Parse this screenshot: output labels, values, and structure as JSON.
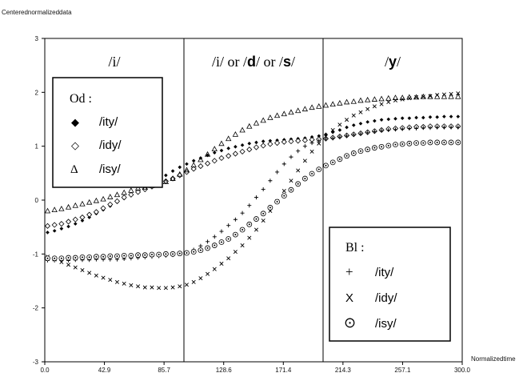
{
  "chart_data": {
    "type": "scatter",
    "ylabel": "Centerednormalizeddata",
    "xlabel": "Normalizedtime",
    "xlim": [
      0,
      300
    ],
    "ylim": [
      -3,
      3
    ],
    "xticks": [
      "0.0",
      "42.9",
      "85.7",
      "128.6",
      "171.4",
      "214.3",
      "257.1",
      "300.0"
    ],
    "yticks": [
      "-3",
      "-2",
      "-1",
      "0",
      "1",
      "2",
      "3"
    ],
    "region_dividers": [
      100,
      200
    ],
    "regions": [
      {
        "label_parts": [
          "/",
          "i",
          "/"
        ],
        "bold": [
          false,
          false,
          false
        ]
      },
      {
        "label_parts": [
          "/",
          "i",
          "/ or /",
          "d",
          "/ or /",
          "s",
          "/"
        ],
        "bold": [
          false,
          false,
          false,
          true,
          false,
          true,
          false
        ]
      },
      {
        "label_parts": [
          "/",
          "y",
          "/"
        ],
        "bold": [
          false,
          true,
          false
        ]
      }
    ],
    "x": [
      2,
      7,
      12,
      17,
      22,
      27,
      32,
      37,
      42,
      47,
      52,
      57,
      62,
      67,
      72,
      77,
      82,
      87,
      92,
      97,
      102,
      107,
      112,
      117,
      122,
      127,
      132,
      137,
      142,
      147,
      152,
      157,
      162,
      167,
      172,
      177,
      182,
      187,
      192,
      197,
      202,
      207,
      212,
      217,
      222,
      227,
      232,
      237,
      242,
      247,
      252,
      257,
      262,
      267,
      272,
      277,
      282,
      287,
      292,
      297
    ],
    "series": [
      {
        "name": "Od /ity/",
        "group": "Od",
        "symbol": "diamond-filled",
        "values": [
          -0.6,
          -0.57,
          -0.53,
          -0.49,
          -0.44,
          -0.38,
          -0.32,
          -0.25,
          -0.18,
          -0.11,
          -0.04,
          0.03,
          0.09,
          0.15,
          0.22,
          0.3,
          0.38,
          0.46,
          0.54,
          0.61,
          0.67,
          0.73,
          0.78,
          0.83,
          0.88,
          0.92,
          0.96,
          0.99,
          1.02,
          1.05,
          1.07,
          1.09,
          1.1,
          1.11,
          1.12,
          1.13,
          1.14,
          1.15,
          1.17,
          1.19,
          1.22,
          1.26,
          1.3,
          1.35,
          1.39,
          1.42,
          1.45,
          1.47,
          1.49,
          1.5,
          1.51,
          1.52,
          1.52,
          1.53,
          1.53,
          1.54,
          1.54,
          1.55,
          1.55,
          1.55
        ]
      },
      {
        "name": "Od /idy/",
        "group": "Od",
        "symbol": "diamond-open",
        "values": [
          -0.48,
          -0.46,
          -0.44,
          -0.4,
          -0.36,
          -0.32,
          -0.27,
          -0.22,
          -0.15,
          -0.08,
          -0.02,
          0.05,
          0.1,
          0.15,
          0.2,
          0.25,
          0.3,
          0.35,
          0.4,
          0.46,
          0.52,
          0.58,
          0.63,
          0.68,
          0.73,
          0.78,
          0.82,
          0.86,
          0.9,
          0.94,
          0.98,
          1.01,
          1.04,
          1.06,
          1.08,
          1.09,
          1.1,
          1.11,
          1.12,
          1.13,
          1.14,
          1.16,
          1.18,
          1.2,
          1.22,
          1.24,
          1.26,
          1.28,
          1.3,
          1.32,
          1.33,
          1.34,
          1.35,
          1.36,
          1.36,
          1.37,
          1.37,
          1.37,
          1.37,
          1.37
        ]
      },
      {
        "name": "Od /isy/",
        "group": "Od",
        "symbol": "triangle-open",
        "values": [
          -0.2,
          -0.18,
          -0.16,
          -0.13,
          -0.1,
          -0.07,
          -0.04,
          -0.01,
          0.02,
          0.06,
          0.1,
          0.14,
          0.18,
          0.22,
          0.24,
          0.27,
          0.3,
          0.34,
          0.4,
          0.48,
          0.56,
          0.65,
          0.75,
          0.85,
          0.95,
          1.05,
          1.14,
          1.22,
          1.3,
          1.37,
          1.43,
          1.48,
          1.53,
          1.57,
          1.6,
          1.63,
          1.66,
          1.69,
          1.72,
          1.74,
          1.76,
          1.78,
          1.8,
          1.82,
          1.83,
          1.85,
          1.86,
          1.87,
          1.88,
          1.89,
          1.9,
          1.9,
          1.91,
          1.91,
          1.92,
          1.92,
          1.92,
          1.92,
          1.92,
          1.92
        ]
      },
      {
        "name": "Bl /ity/",
        "group": "Bl",
        "symbol": "plus",
        "values": [
          -1.12,
          -1.12,
          -1.12,
          -1.12,
          -1.11,
          -1.11,
          -1.11,
          -1.1,
          -1.1,
          -1.1,
          -1.1,
          -1.09,
          -1.08,
          -1.07,
          -1.06,
          -1.05,
          -1.04,
          -1.03,
          -1.02,
          -1.0,
          -0.97,
          -0.92,
          -0.85,
          -0.77,
          -0.68,
          -0.58,
          -0.47,
          -0.36,
          -0.24,
          -0.1,
          0.05,
          0.2,
          0.36,
          0.52,
          0.67,
          0.8,
          0.91,
          1.0,
          1.06,
          1.1,
          1.13,
          1.15,
          1.17,
          1.19,
          1.21,
          1.23,
          1.25,
          1.27,
          1.29,
          1.3,
          1.31,
          1.32,
          1.33,
          1.33,
          1.34,
          1.34,
          1.35,
          1.35,
          1.35,
          1.35
        ]
      },
      {
        "name": "Bl /idy/",
        "group": "Bl",
        "symbol": "x",
        "values": [
          -1.05,
          -1.1,
          -1.15,
          -1.2,
          -1.25,
          -1.3,
          -1.35,
          -1.4,
          -1.44,
          -1.48,
          -1.52,
          -1.55,
          -1.58,
          -1.6,
          -1.62,
          -1.62,
          -1.63,
          -1.63,
          -1.62,
          -1.6,
          -1.57,
          -1.52,
          -1.45,
          -1.37,
          -1.28,
          -1.18,
          -1.08,
          -0.96,
          -0.84,
          -0.7,
          -0.55,
          -0.38,
          -0.2,
          -0.02,
          0.17,
          0.36,
          0.55,
          0.73,
          0.9,
          1.05,
          1.18,
          1.3,
          1.4,
          1.49,
          1.57,
          1.63,
          1.69,
          1.74,
          1.78,
          1.82,
          1.85,
          1.87,
          1.89,
          1.91,
          1.92,
          1.93,
          1.95,
          1.96,
          1.97,
          1.98
        ]
      },
      {
        "name": "Bl /isy/",
        "group": "Bl",
        "symbol": "circle-dot",
        "values": [
          -1.08,
          -1.08,
          -1.08,
          -1.07,
          -1.07,
          -1.06,
          -1.06,
          -1.05,
          -1.05,
          -1.04,
          -1.04,
          -1.03,
          -1.03,
          -1.02,
          -1.02,
          -1.01,
          -1.01,
          -1.0,
          -1.0,
          -0.99,
          -0.98,
          -0.96,
          -0.93,
          -0.89,
          -0.84,
          -0.78,
          -0.72,
          -0.64,
          -0.55,
          -0.45,
          -0.35,
          -0.25,
          -0.14,
          -0.03,
          0.08,
          0.19,
          0.3,
          0.4,
          0.49,
          0.57,
          0.64,
          0.7,
          0.76,
          0.82,
          0.87,
          0.91,
          0.94,
          0.97,
          0.99,
          1.01,
          1.03,
          1.04,
          1.05,
          1.06,
          1.06,
          1.07,
          1.07,
          1.07,
          1.07,
          1.07
        ]
      }
    ],
    "legends": [
      {
        "title": "Od :",
        "position": "upper-left",
        "entries": [
          {
            "glyph": "◆",
            "symbol": "diamond-filled",
            "label": "/ity/"
          },
          {
            "glyph": "◇",
            "symbol": "diamond-open",
            "label": "/idy/"
          },
          {
            "glyph": "Δ",
            "symbol": "triangle-open",
            "label": "/isy/"
          }
        ]
      },
      {
        "title": "Bl :",
        "position": "lower-right",
        "entries": [
          {
            "glyph": "+",
            "symbol": "plus",
            "label": "/ity/"
          },
          {
            "glyph": "X",
            "symbol": "x",
            "label": "/idy/"
          },
          {
            "glyph": "⊙",
            "symbol": "circle-dot",
            "label": "/isy/"
          }
        ]
      }
    ]
  }
}
